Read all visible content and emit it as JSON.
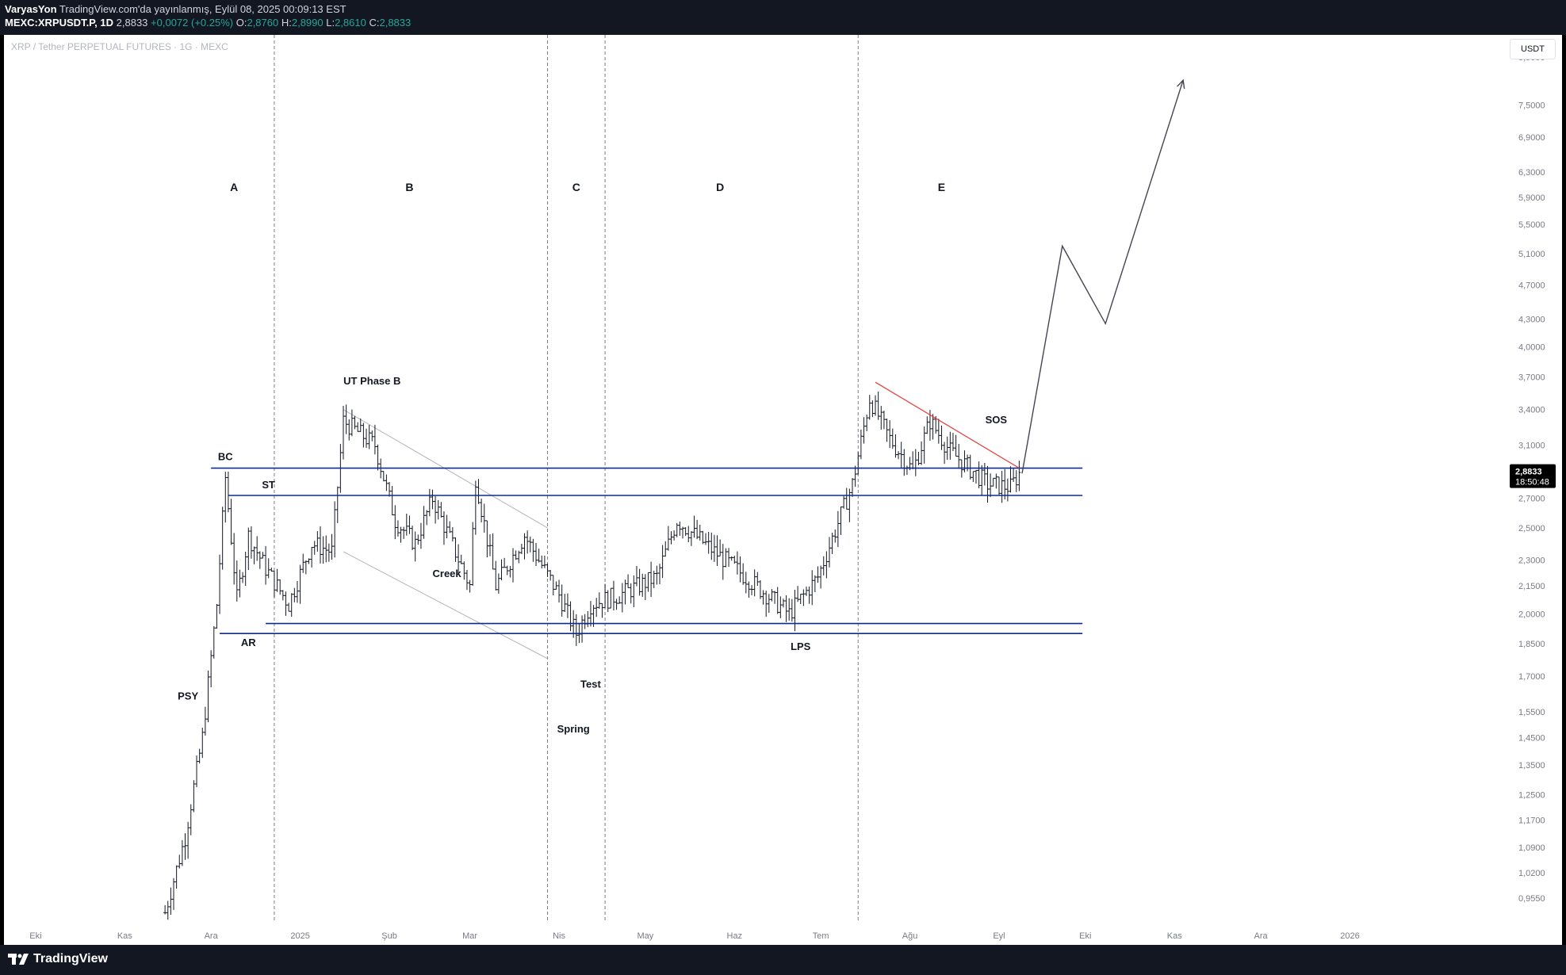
{
  "header": {
    "publisher": "VaryasYon",
    "published_text": "TradingView.com'da yayınlanmış, Eylül 08, 2025 00:09:13 EST",
    "symbol": "MEXC:XRPUSDT.P, 1D",
    "last": "2,8833",
    "change": "+0,0072 (+0.25%)",
    "o_label": "O:",
    "o": "2,8760",
    "h_label": "H:",
    "h": "2,8990",
    "l_label": "L:",
    "l": "2,8610",
    "c_label": "C:",
    "c": "2,8833"
  },
  "subtitle": "XRP / Tether PERPETUAL FUTURES · 1G · MEXC",
  "currency_button": "USDT",
  "footer": {
    "brand": "TradingView"
  },
  "colors": {
    "candle": "#131722",
    "level_line": "#0d2b8e",
    "resistance": "#e53935",
    "sos": "#c62828",
    "price_tag": "#000000"
  },
  "chart_data": {
    "type": "ohlc",
    "scale": "log",
    "ylim": [
      0.9,
      9.0
    ],
    "y_ticks": [
      "8,5000",
      "7,5000",
      "6,9000",
      "6,3000",
      "5,9000",
      "5,5000",
      "5,1000",
      "4,7000",
      "4,3000",
      "4,0000",
      "3,7000",
      "3,4000",
      "3,1000",
      "2,7000",
      "2,5000",
      "2,3000",
      "2,1500",
      "2,0000",
      "1,8500",
      "1,7000",
      "1,5500",
      "1,4500",
      "1,3500",
      "1,2500",
      "1,1700",
      "1,0900",
      "1,0200",
      "0,9550"
    ],
    "x_ticks": [
      "Eki",
      "Kas",
      "Ara",
      "2025",
      "Şub",
      "Mar",
      "Nis",
      "May",
      "Haz",
      "Tem",
      "Ağu",
      "Eyl",
      "Eki",
      "Kas",
      "Ara",
      "2026"
    ],
    "x_tick_dates": [
      "2024-10-01",
      "2024-11-01",
      "2024-12-01",
      "2025-01-01",
      "2025-02-01",
      "2025-03-01",
      "2025-04-01",
      "2025-05-01",
      "2025-06-01",
      "2025-07-01",
      "2025-08-01",
      "2025-09-01",
      "2025-10-01",
      "2025-11-01",
      "2025-12-01",
      "2026-01-01"
    ],
    "x_range": [
      "2024-09-20",
      "2026-02-25"
    ],
    "last_price": "2,8833",
    "countdown": "18:50:48",
    "anchors": [
      [
        "2024-11-15",
        0.92
      ],
      [
        "2024-11-22",
        1.12
      ],
      [
        "2024-11-28",
        1.45
      ],
      [
        "2024-12-03",
        2.05
      ],
      [
        "2024-12-06",
        2.85
      ],
      [
        "2024-12-10",
        2.08
      ],
      [
        "2024-12-14",
        2.45
      ],
      [
        "2024-12-20",
        2.25
      ],
      [
        "2024-12-28",
        2.05
      ],
      [
        "2025-01-05",
        2.4
      ],
      [
        "2025-01-12",
        2.35
      ],
      [
        "2025-01-16",
        3.3
      ],
      [
        "2025-01-27",
        3.1
      ],
      [
        "2025-02-03",
        2.55
      ],
      [
        "2025-02-10",
        2.4
      ],
      [
        "2025-02-16",
        2.7
      ],
      [
        "2025-03-01",
        2.15
      ],
      [
        "2025-03-03",
        2.85
      ],
      [
        "2025-03-10",
        2.15
      ],
      [
        "2025-03-20",
        2.45
      ],
      [
        "2025-04-01",
        2.1
      ],
      [
        "2025-04-07",
        1.9
      ],
      [
        "2025-04-12",
        2.05
      ],
      [
        "2025-04-22",
        2.1
      ],
      [
        "2025-05-05",
        2.2
      ],
      [
        "2025-05-12",
        2.55
      ],
      [
        "2025-05-25",
        2.35
      ],
      [
        "2025-06-05",
        2.2
      ],
      [
        "2025-06-20",
        2.0
      ],
      [
        "2025-06-30",
        2.2
      ],
      [
        "2025-07-12",
        2.8
      ],
      [
        "2025-07-18",
        3.5
      ],
      [
        "2025-07-25",
        3.15
      ],
      [
        "2025-08-02",
        2.9
      ],
      [
        "2025-08-08",
        3.3
      ],
      [
        "2025-08-15",
        3.05
      ],
      [
        "2025-08-28",
        2.8
      ],
      [
        "2025-09-05",
        2.78
      ],
      [
        "2025-09-08",
        2.88
      ]
    ],
    "levels": [
      {
        "from": "2024-12-01",
        "to": "2025-09-30",
        "price": 2.92
      },
      {
        "from": "2024-12-07",
        "to": "2025-09-30",
        "price": 2.72
      },
      {
        "from": "2024-12-20",
        "to": "2025-09-30",
        "price": 1.95
      },
      {
        "from": "2024-12-04",
        "to": "2025-09-30",
        "price": 1.9
      }
    ],
    "trend_lines": [
      {
        "from": [
          "2025-01-16",
          3.4
        ],
        "to": [
          "2025-03-28",
          2.5
        ]
      },
      {
        "from": [
          "2025-01-16",
          2.35
        ],
        "to": [
          "2025-03-28",
          1.78
        ]
      }
    ],
    "resistance_line": {
      "from": [
        "2025-07-20",
        3.65
      ],
      "to": [
        "2025-09-08",
        2.92
      ]
    },
    "projection": [
      [
        "2025-09-09",
        2.88
      ],
      [
        "2025-09-23",
        5.2
      ],
      [
        "2025-10-08",
        4.25
      ],
      [
        "2025-11-04",
        8.0
      ]
    ],
    "phase_dividers": [
      "2024-12-23",
      "2025-03-28",
      "2025-04-17",
      "2025-07-14"
    ],
    "phases": [
      {
        "label": "A",
        "date": "2024-12-09",
        "price": 6.0
      },
      {
        "label": "B",
        "date": "2025-02-08",
        "price": 6.0
      },
      {
        "label": "C",
        "date": "2025-04-07",
        "price": 6.0
      },
      {
        "label": "D",
        "date": "2025-05-27",
        "price": 6.0
      },
      {
        "label": "E",
        "date": "2025-08-12",
        "price": 6.0
      }
    ],
    "annotations": [
      {
        "text": "PSY",
        "date": "2024-11-23",
        "price": 1.6
      },
      {
        "text": "BC",
        "date": "2024-12-06",
        "price": 2.98
      },
      {
        "text": "ST",
        "date": "2024-12-21",
        "price": 2.77
      },
      {
        "text": "AR",
        "date": "2024-12-14",
        "price": 1.84
      },
      {
        "text": "UT Phase B",
        "date": "2025-01-26",
        "price": 3.63
      },
      {
        "text": "Creek",
        "date": "2025-02-21",
        "price": 2.2
      },
      {
        "text": "Spring",
        "date": "2025-04-06",
        "price": 1.47
      },
      {
        "text": "Test",
        "date": "2025-04-12",
        "price": 1.65
      },
      {
        "text": "LPS",
        "date": "2025-06-24",
        "price": 1.82
      },
      {
        "text": "SOS",
        "date": "2025-08-31",
        "price": 3.28
      }
    ]
  }
}
